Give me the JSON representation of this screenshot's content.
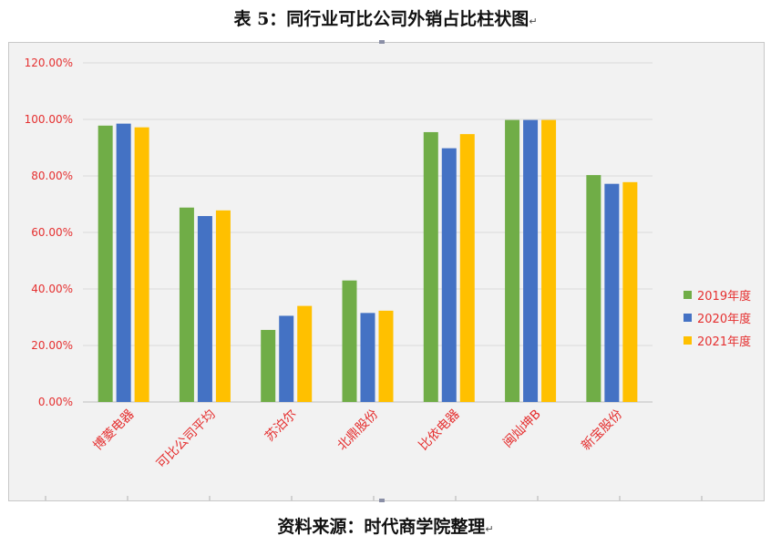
{
  "document": {
    "title": "表 5：同行业可比公司外销占比柱状图",
    "source": "资料来源：时代商学院整理",
    "return_mark": "↵"
  },
  "colors": {
    "series": [
      "#70ad47",
      "#4472c4",
      "#ffc000"
    ],
    "label_text": "#e53030",
    "grid": "#d9d9d9"
  },
  "chart_data": {
    "type": "bar",
    "categories": [
      "博菱电器",
      "可比公司平均",
      "苏泊尔",
      "北鼎股份",
      "比依电器",
      "闽灿坤B",
      "新宝股份"
    ],
    "series": [
      {
        "name": "2019年度",
        "values": [
          97.8,
          68.8,
          25.5,
          43.0,
          95.5,
          99.8,
          80.3
        ]
      },
      {
        "name": "2020年度",
        "values": [
          98.5,
          65.8,
          30.5,
          31.5,
          89.8,
          99.8,
          77.2
        ]
      },
      {
        "name": "2021年度",
        "values": [
          97.2,
          67.8,
          34.0,
          32.3,
          94.8,
          99.8,
          77.8
        ]
      }
    ],
    "yticks": [
      "0.00%",
      "20.00%",
      "40.00%",
      "60.00%",
      "80.00%",
      "100.00%",
      "120.00%"
    ],
    "ylim": [
      0,
      120
    ],
    "title": "",
    "xlabel": "",
    "ylabel": "",
    "grid": true,
    "legend": "right"
  }
}
